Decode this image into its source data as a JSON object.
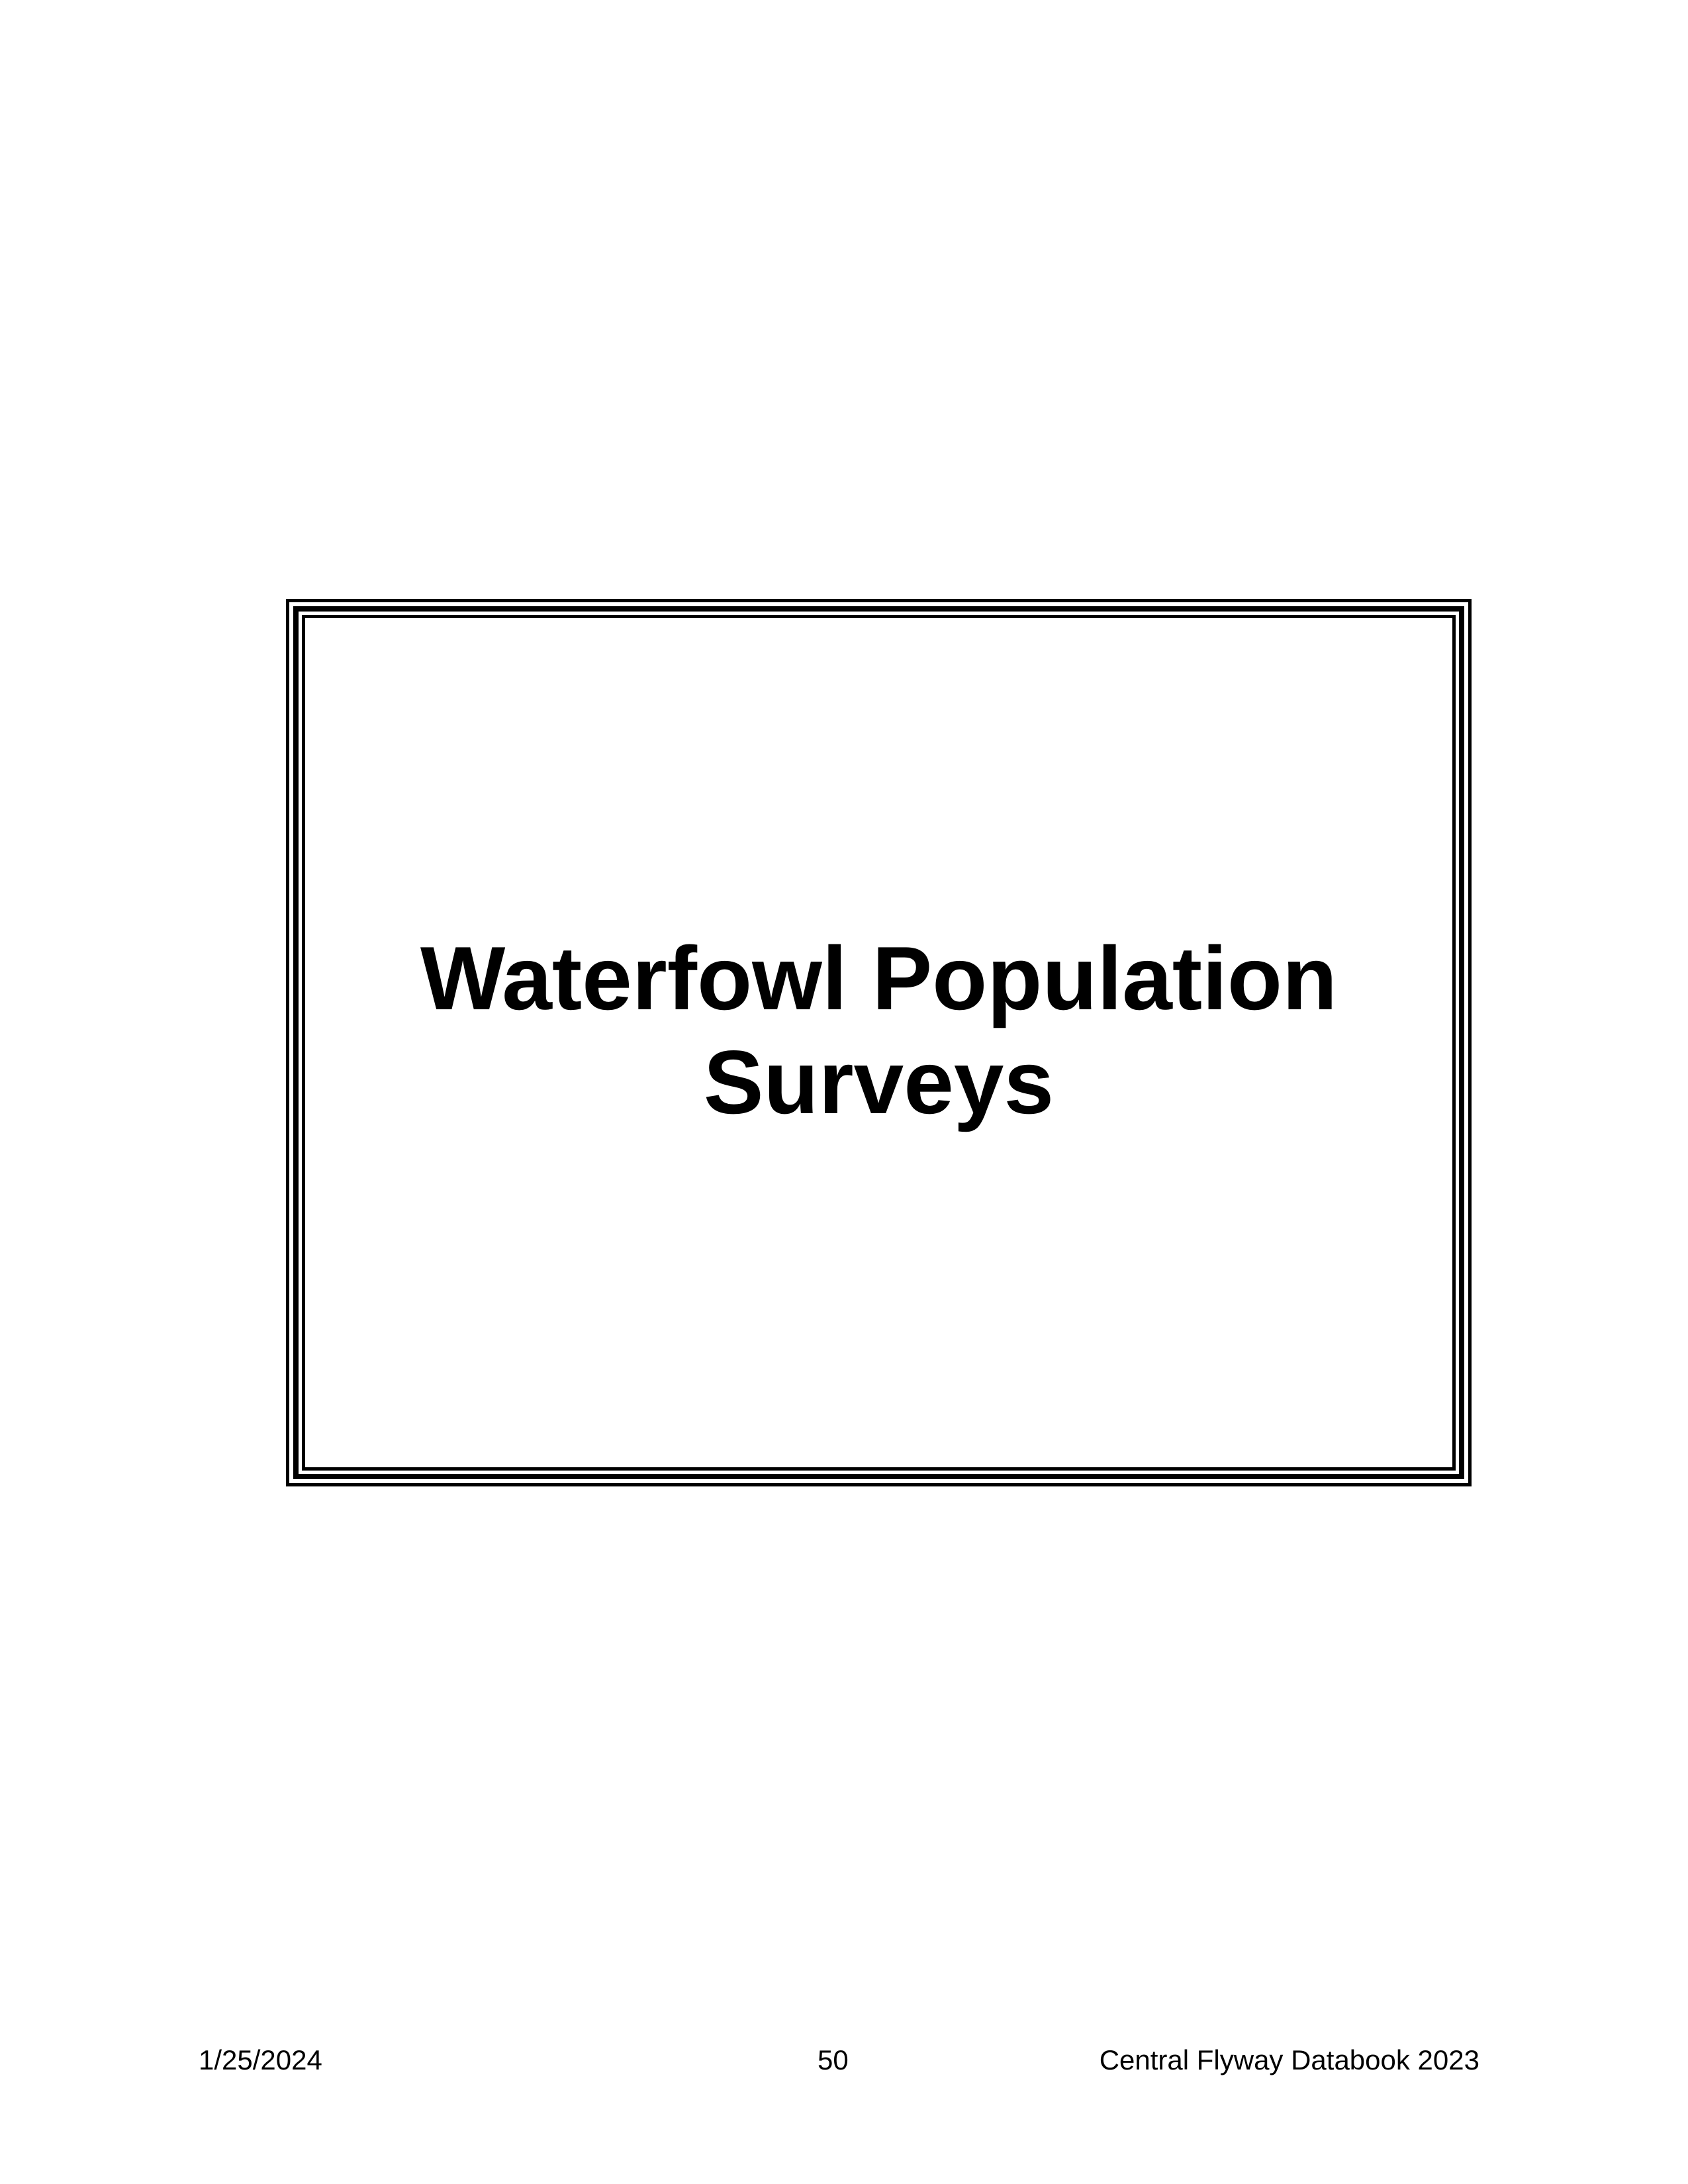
{
  "title": {
    "line1": "Waterfowl Population",
    "line2": "Surveys"
  },
  "footer": {
    "date": "1/25/2024",
    "page_number": "50",
    "publication": "Central Flyway Databook 2023"
  }
}
